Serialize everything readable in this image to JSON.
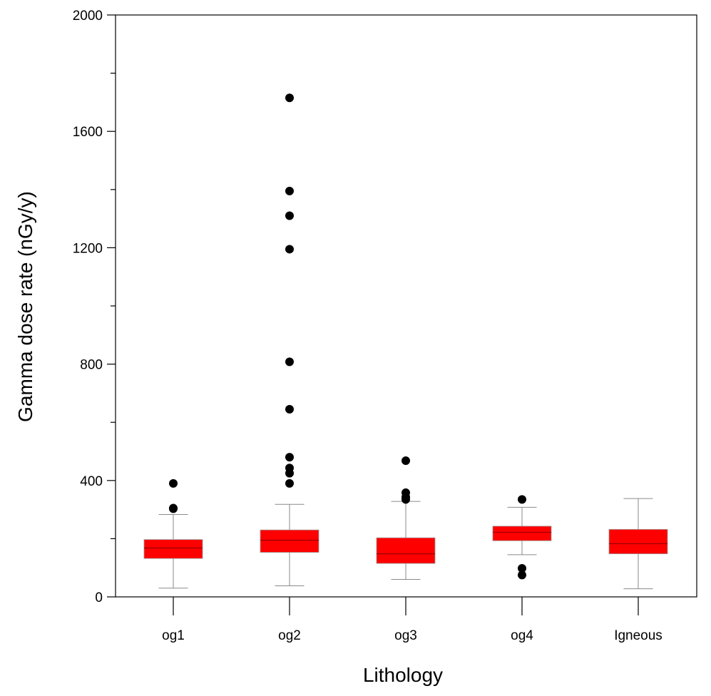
{
  "chart_data": {
    "type": "box",
    "title": "",
    "xlabel": "Lithology",
    "ylabel": "Gamma dose rate (nGy/y)",
    "ylim": [
      0,
      2000
    ],
    "yticks": [
      "0",
      "400",
      "800",
      "1200",
      "1600",
      "2000"
    ],
    "grid": false,
    "legend": "none",
    "box_color": "#ff0000",
    "outlier_color": "#000000",
    "categories": [
      "og1",
      "og2",
      "og3",
      "og4",
      "Igneous"
    ],
    "boxes": [
      {
        "category": "og1",
        "whisker_low": 30,
        "q1": 132,
        "median": 168,
        "q3": 197,
        "whisker_high": 283,
        "outliers": [
          303,
          305,
          390
        ]
      },
      {
        "category": "og2",
        "whisker_low": 38,
        "q1": 153,
        "median": 195,
        "q3": 230,
        "whisker_high": 318,
        "outliers": [
          390,
          425,
          443,
          480,
          645,
          808,
          1195,
          1310,
          1395,
          1715
        ]
      },
      {
        "category": "og3",
        "whisker_low": 60,
        "q1": 115,
        "median": 148,
        "q3": 203,
        "whisker_high": 328,
        "outliers": [
          335,
          343,
          358,
          468
        ]
      },
      {
        "category": "og4",
        "whisker_low": 145,
        "q1": 193,
        "median": 222,
        "q3": 243,
        "whisker_high": 308,
        "outliers": [
          75,
          98,
          335
        ]
      },
      {
        "category": "Igneous",
        "whisker_low": 28,
        "q1": 148,
        "median": 183,
        "q3": 232,
        "whisker_high": 338,
        "outliers": []
      }
    ]
  }
}
